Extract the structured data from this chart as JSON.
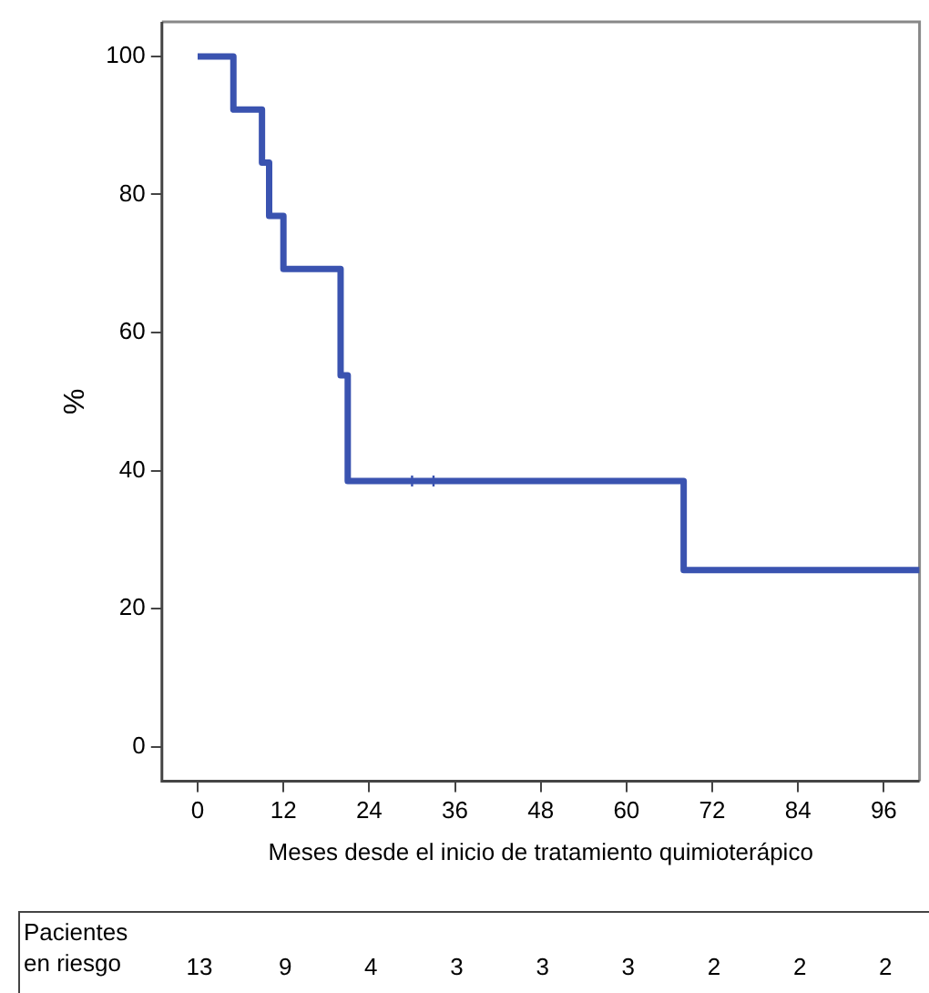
{
  "chart_data": {
    "type": "step",
    "xlabel": "Meses desde el inicio de tratamiento quimioterápico",
    "ylabel": "%",
    "x": [
      0,
      5,
      9,
      10,
      12,
      20,
      21,
      68,
      101
    ],
    "series": [
      {
        "color": "#3a53b0",
        "values": [
          100,
          92.3,
          84.6,
          76.9,
          69.2,
          53.8,
          38.5,
          25.6,
          25.6
        ]
      },
      {
        "type": "scatter",
        "color": "#3a53b0",
        "x": [
          30,
          33
        ],
        "values": [
          38.5,
          38.5
        ],
        "marker": "cross"
      }
    ],
    "xlim": [
      -5,
      101
    ],
    "ylim": [
      -5,
      105
    ],
    "xticks": [
      0,
      12,
      24,
      36,
      48,
      60,
      72,
      84,
      96
    ],
    "yticks": [
      0,
      20,
      40,
      60,
      80,
      100
    ],
    "grid": false,
    "legend": false,
    "annotations": [
      "Pacientes en riesgo",
      "13",
      "9",
      "4",
      "3",
      "3",
      "3",
      "2",
      "2",
      "2"
    ]
  }
}
